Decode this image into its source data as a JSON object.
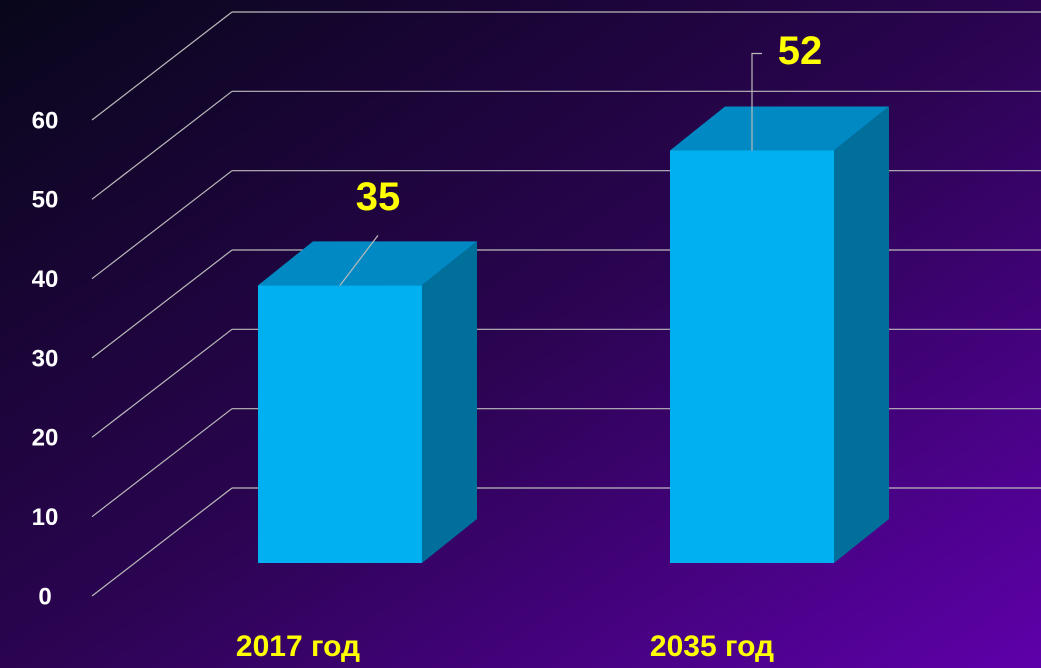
{
  "chart_data": {
    "type": "bar",
    "categories": [
      "2017 год",
      "2035 год"
    ],
    "values": [
      35,
      52
    ],
    "color": "#00b0f0",
    "ylim": [
      0,
      60
    ],
    "yticks": [
      0,
      10,
      20,
      30,
      40,
      50,
      60
    ],
    "grid": true
  }
}
